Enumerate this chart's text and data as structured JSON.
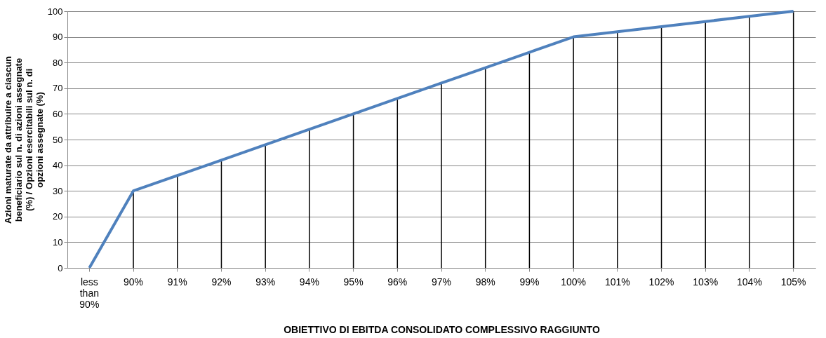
{
  "chart_data": {
    "type": "line",
    "xlabel": "OBIETTIVO DI EBITDA CONSOLIDATO COMPLESSIVO RAGGIUNTO",
    "ylabel": "Azioni maturate da attribuire a ciascun beneficiario sul n. di azioni assegnate (%) / Opzioni esercitabili sul n. di opzioni assegnate (%)",
    "categories": [
      "less than 90%",
      "90%",
      "91%",
      "92%",
      "93%",
      "94%",
      "95%",
      "96%",
      "97%",
      "98%",
      "99%",
      "100%",
      "101%",
      "102%",
      "103%",
      "104%",
      "105%"
    ],
    "series": [
      {
        "type": "bar",
        "color": "#000000",
        "values": [
          0,
          30,
          36,
          42,
          48,
          54,
          60,
          66,
          72,
          78,
          84,
          90,
          92,
          94,
          96,
          98,
          100
        ]
      },
      {
        "color": "#4f81bd",
        "values": [
          0,
          30,
          36,
          42,
          48,
          54,
          60,
          66,
          72,
          78,
          84,
          90,
          92,
          94,
          96,
          98,
          100
        ]
      }
    ],
    "ylim": [
      0,
      100
    ],
    "yticks": [
      0,
      10,
      20,
      30,
      40,
      50,
      60,
      70,
      80,
      90,
      100
    ],
    "grid": "y",
    "marker": "none",
    "line_style": "solid"
  }
}
